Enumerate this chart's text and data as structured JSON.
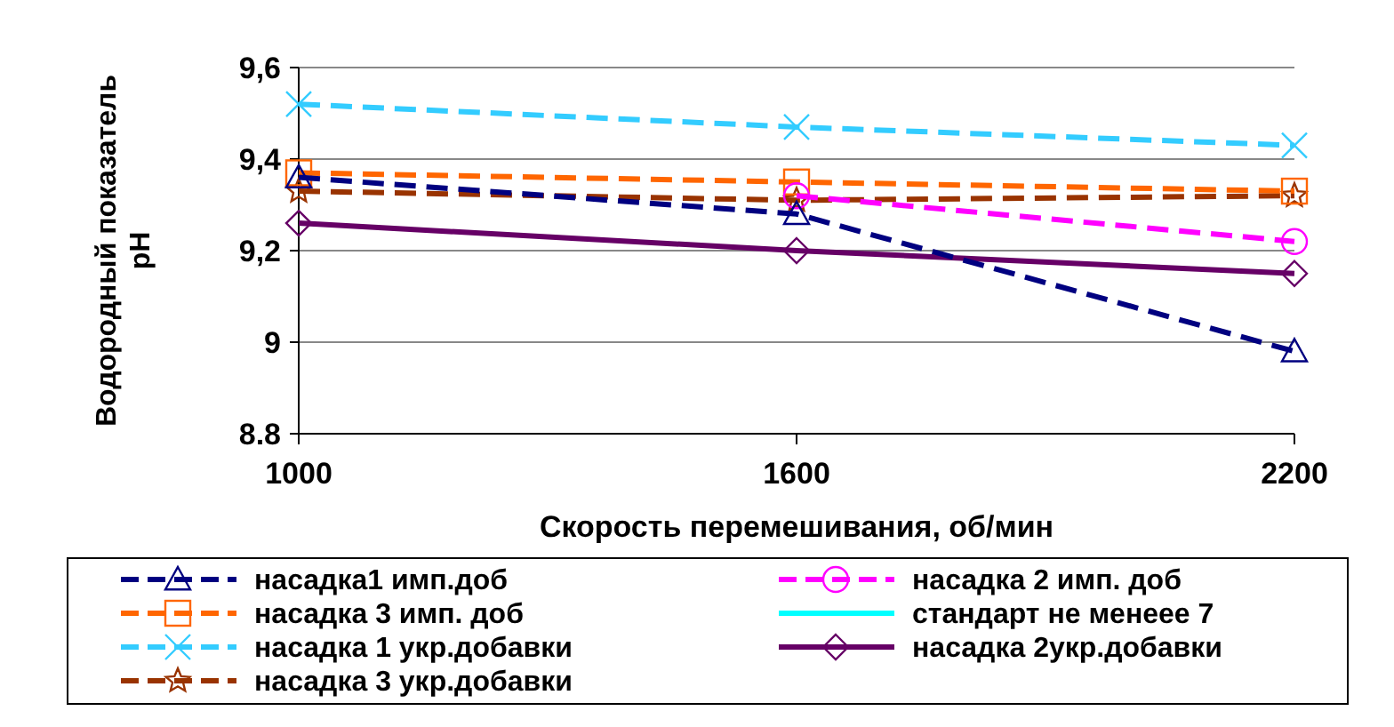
{
  "chart_data": {
    "type": "line",
    "xlabel": "Скорость перемешивания, об/мин",
    "ylabel": "Водородный показатель pH",
    "x": [
      1000,
      1600,
      2200
    ],
    "xlim": [
      1000,
      2200
    ],
    "xticks": [
      1000,
      1600,
      2200
    ],
    "ylim": [
      8.8,
      9.6
    ],
    "yticks": [
      8.8,
      9,
      {
        "value": 9.2,
        "label": "9,2"
      },
      {
        "value": 9.4,
        "label": "9,4"
      },
      {
        "value": 9.6,
        "label": "9,6"
      }
    ],
    "grid": "y",
    "legend": "bottom",
    "series": [
      {
        "name": "насадка1 имп.доб",
        "color": "#000080",
        "values": [
          9.36,
          9.28,
          8.98
        ],
        "marker": "triangle",
        "line_style": "dashed"
      },
      {
        "name": "насадка 2 имп. доб",
        "color": "#ff00ff",
        "values": [
          null,
          9.32,
          9.22
        ],
        "marker": "circle",
        "line_style": "dashed"
      },
      {
        "name": "насадка 3 имп. доб",
        "color": "#ff6600",
        "values": [
          9.37,
          9.35,
          9.33
        ],
        "marker": "square",
        "line_style": "dashed"
      },
      {
        "name": "стандарт не менеее 7",
        "color": "#00ffff",
        "values": [
          null,
          null,
          null
        ],
        "marker": "none",
        "line_style": "solid"
      },
      {
        "name": "насадка 1 укр.добавки",
        "color": "#33ccff",
        "values": [
          9.52,
          9.47,
          9.43
        ],
        "marker": "cross",
        "line_style": "dashed"
      },
      {
        "name": "насадка 2укр.добавки",
        "color": "#660066",
        "values": [
          9.26,
          9.2,
          9.15
        ],
        "marker": "diamond",
        "line_style": "solid"
      },
      {
        "name": "насадка 3 укр.добавки",
        "color": "#993300",
        "values": [
          9.33,
          9.31,
          9.32
        ],
        "marker": "star",
        "line_style": "dashed"
      }
    ]
  }
}
